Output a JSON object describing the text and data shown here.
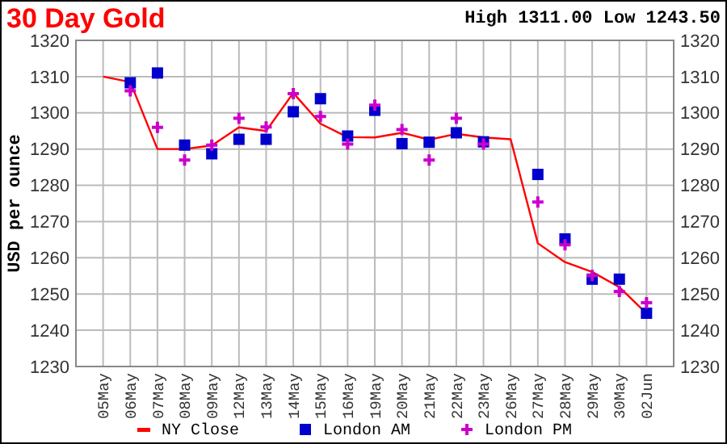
{
  "chart_data": {
    "type": "line",
    "title": "30 Day Gold",
    "subtitle": "High 1311.00 Low 1243.50",
    "ylabel": "USD per ounce",
    "categories": [
      "05May",
      "06May",
      "07May",
      "08May",
      "09May",
      "12May",
      "13May",
      "14May",
      "15May",
      "16May",
      "19May",
      "20May",
      "21May",
      "22May",
      "23May",
      "26May",
      "27May",
      "28May",
      "29May",
      "30May",
      "02Jun"
    ],
    "series": [
      {
        "name": "NY Close",
        "type": "line",
        "color": "#ff0000",
        "marker": "none",
        "values": [
          1310,
          1308.5,
          1290,
          1290,
          1291,
          1296,
          1295,
          1305.5,
          1297,
          1293.3,
          1293.2,
          1294.5,
          1292.6,
          1294.2,
          1293.2,
          1292.7,
          1264,
          1258.8,
          1256.1,
          1251.9,
          1244.6
        ]
      },
      {
        "name": "London AM",
        "type": "scatter",
        "color": "#0000cc",
        "marker": "square",
        "values": [
          null,
          1308.3,
          1311,
          1291.1,
          1288.7,
          1292.7,
          1292.7,
          1300.3,
          1303.9,
          1293.6,
          1300.7,
          1291.5,
          1291.9,
          1294.5,
          1292,
          null,
          1283,
          1265.2,
          1254.1,
          1254.1,
          1244.7
        ]
      },
      {
        "name": "London PM",
        "type": "scatter",
        "color": "#cc00cc",
        "marker": "cross",
        "values": [
          null,
          1306.1,
          1296,
          1287,
          1291.1,
          1298.5,
          1296.1,
          1305.3,
          1299,
          1291.4,
          1302.1,
          1295.4,
          1287,
          1298.5,
          1291.4,
          null,
          1275.4,
          1263.6,
          1255.1,
          1250.7,
          1247.6
        ]
      }
    ],
    "ylim": [
      1230,
      1320
    ],
    "yticks": [
      1230,
      1240,
      1250,
      1260,
      1270,
      1280,
      1290,
      1300,
      1310,
      1320
    ],
    "y2lim": [
      1230,
      1320
    ],
    "y2ticks": [
      1230,
      1240,
      1250,
      1260,
      1270,
      1280,
      1290,
      1300,
      1310,
      1320
    ],
    "grid": true,
    "legend": "bottom"
  }
}
